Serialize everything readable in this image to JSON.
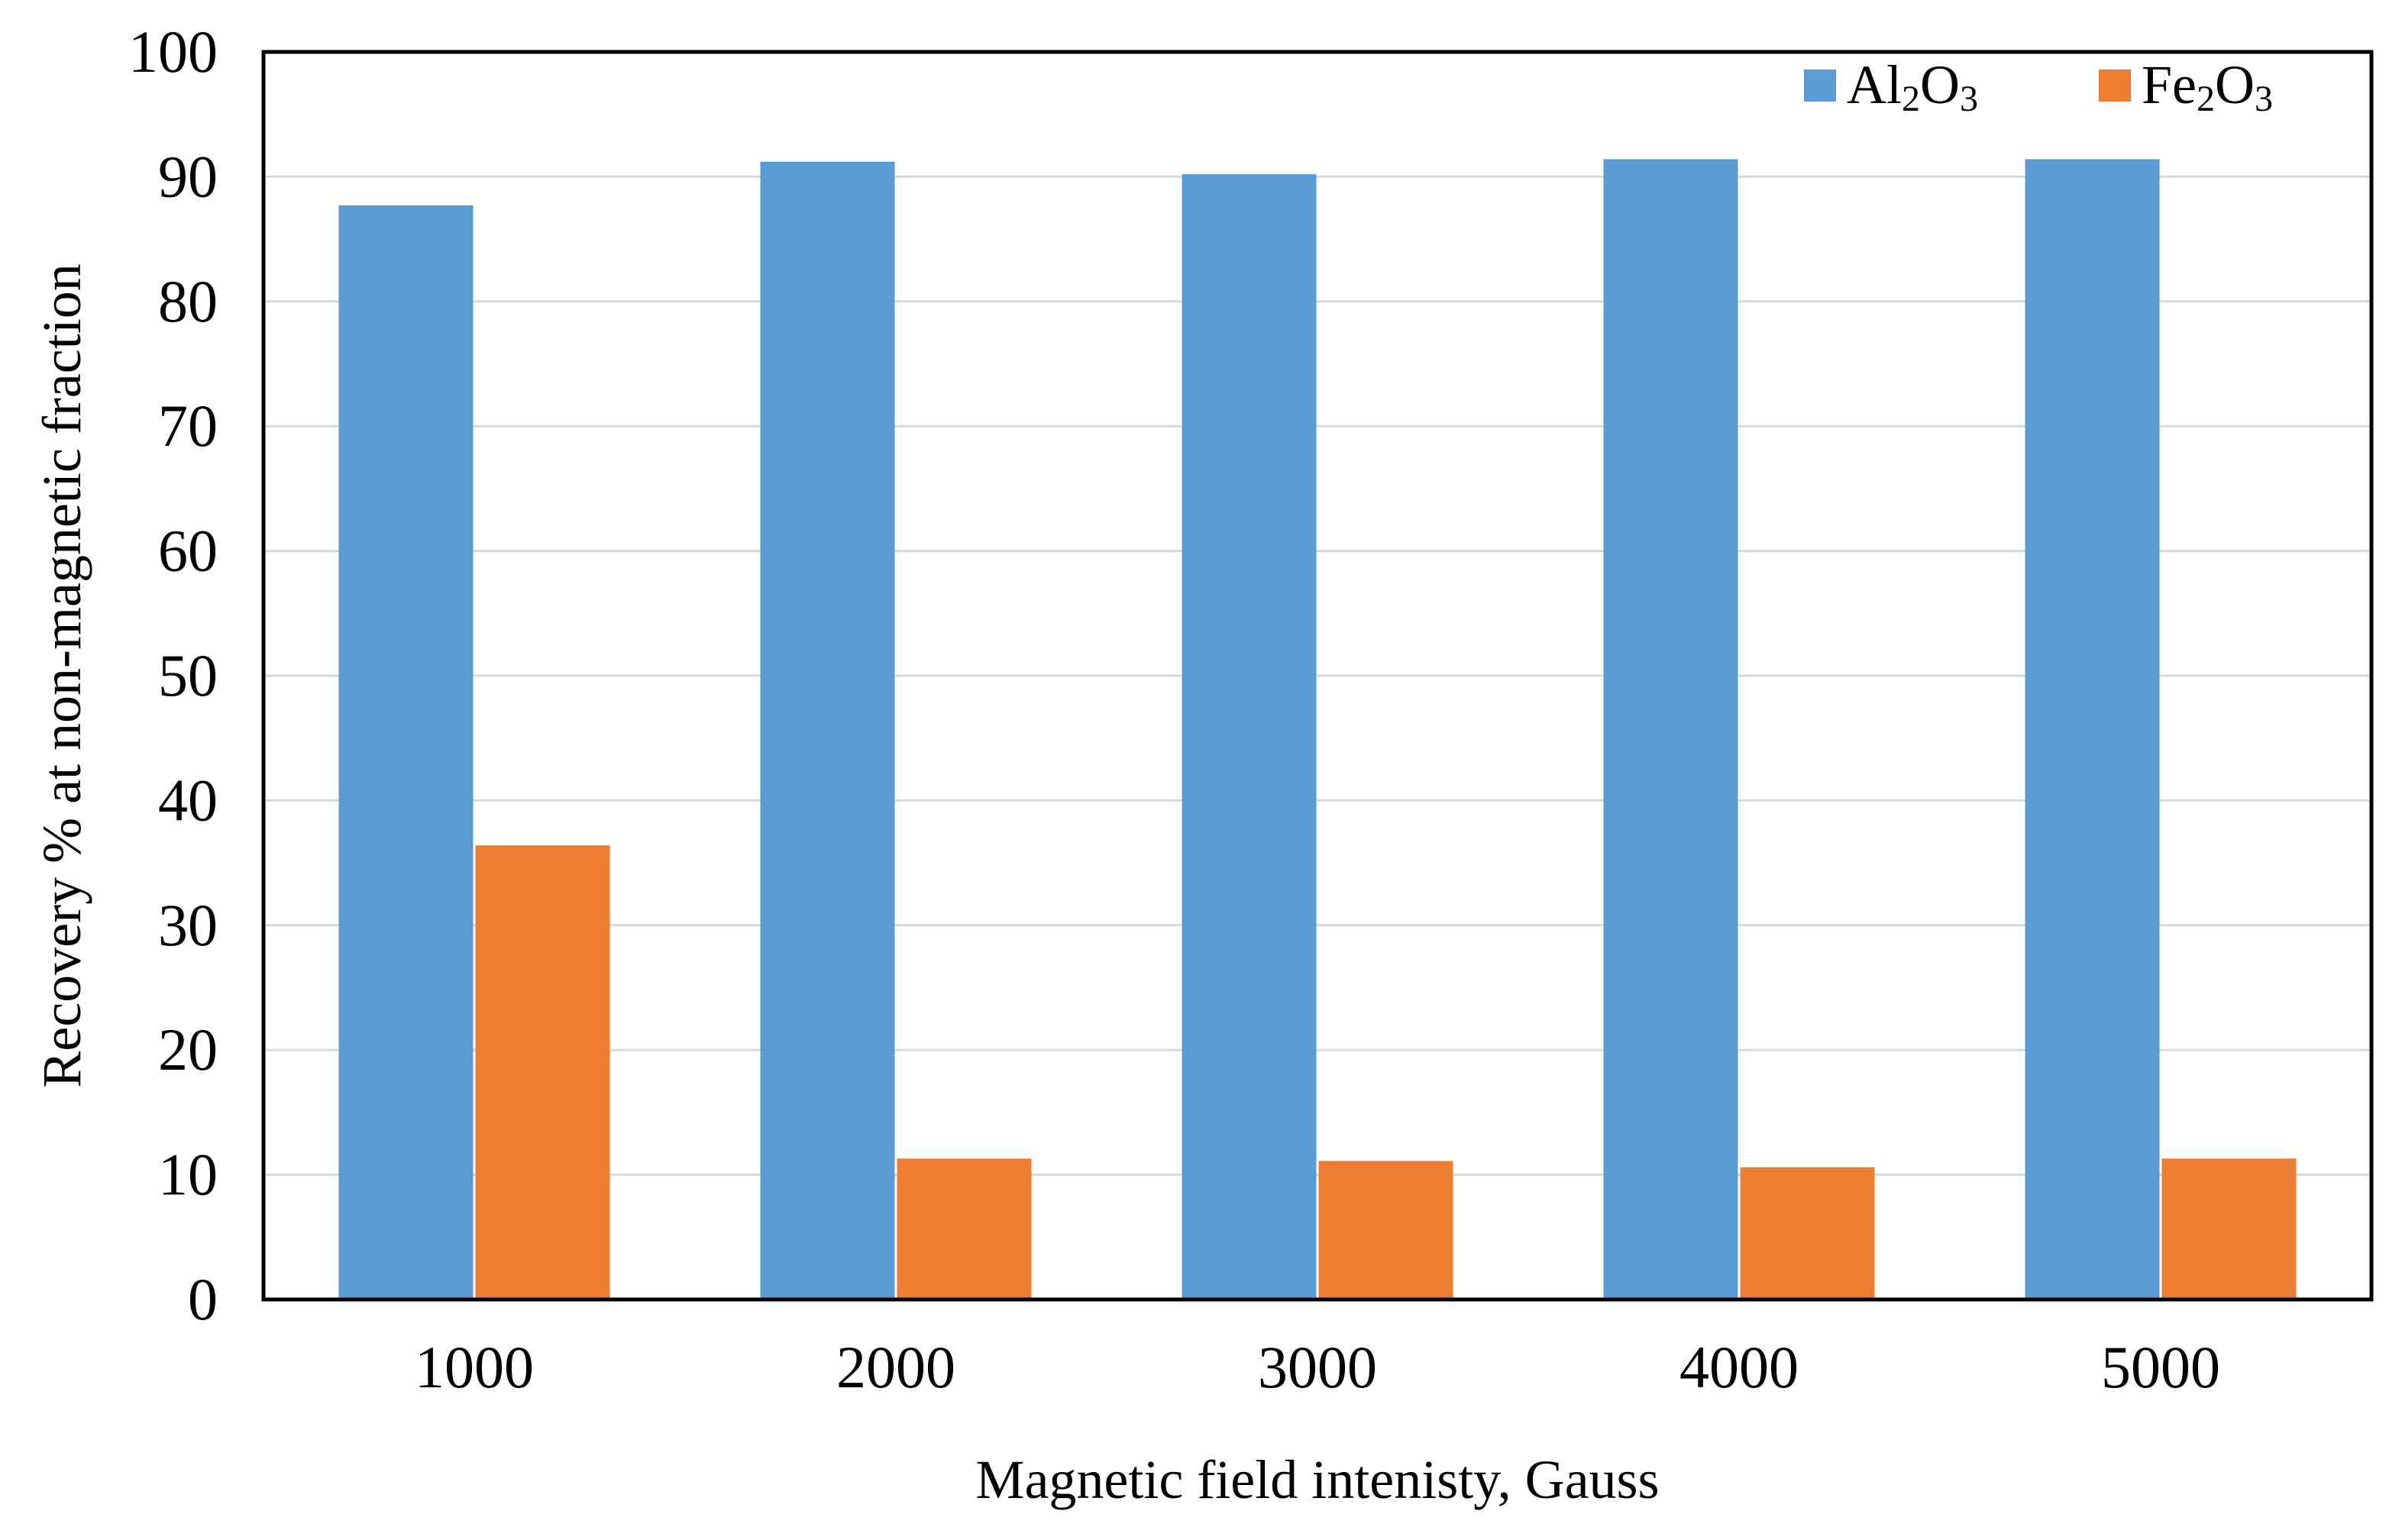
{
  "chart_data": {
    "type": "bar",
    "title": "",
    "xlabel": "Magnetic field intenisty, Gauss",
    "ylabel": "Recovery % at non-magnetic fraction",
    "categories": [
      "1000",
      "2000",
      "3000",
      "4000",
      "5000"
    ],
    "series": [
      {
        "name": "Al2O3",
        "label_parts": [
          {
            "text": "Al",
            "sub": false
          },
          {
            "text": "2",
            "sub": true
          },
          {
            "text": "O",
            "sub": false
          },
          {
            "text": "3",
            "sub": true
          }
        ],
        "color": "#5B9BD5",
        "values": [
          87.7,
          91.2,
          90.2,
          91.4,
          91.4
        ]
      },
      {
        "name": "Fe2O3",
        "label_parts": [
          {
            "text": "Fe",
            "sub": false
          },
          {
            "text": "2",
            "sub": true
          },
          {
            "text": "O",
            "sub": false
          },
          {
            "text": "3",
            "sub": true
          }
        ],
        "color": "#ED7D31",
        "values": [
          36.4,
          11.3,
          11.1,
          10.6,
          11.3
        ]
      }
    ],
    "ylim": [
      0,
      100
    ],
    "yticks": [
      "0",
      "10",
      "20",
      "30",
      "40",
      "50",
      "60",
      "70",
      "80",
      "90",
      "100"
    ],
    "grid": true,
    "legend_position": "top-right"
  }
}
